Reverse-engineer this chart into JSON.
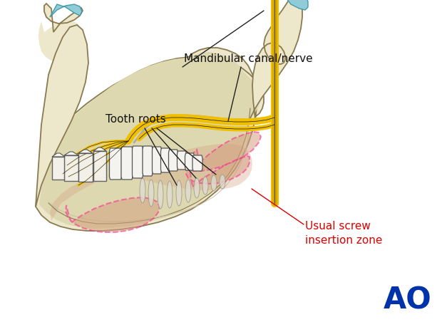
{
  "background_color": "#ffffff",
  "bone_color": "#ede8cc",
  "bone_color2": "#ddd8b0",
  "bone_edge": "#8a7a50",
  "bone_inner": "#c8c0a0",
  "tooth_color": "#f5f3ef",
  "tooth_edge": "#555555",
  "nerve_yellow": "#f0c000",
  "nerve_yellow2": "#d4aa00",
  "nerve_gray": "#aaaaaa",
  "screw_zone_fill": "#d4a080",
  "screw_zone_alpha": 0.55,
  "screw_dashed": "#ff2090",
  "cartilage": "#90ccd8",
  "cartilage_edge": "#4499aa",
  "label_canal": "Mandibular canal/nerve",
  "label_roots": "Tooth roots",
  "label_screw": "Usual screw\ninsertion zone",
  "label_screw_color": "#dd0000",
  "ao_text": "AO",
  "ao_color": "#0033aa",
  "font_size": 11,
  "ao_font_size": 30
}
